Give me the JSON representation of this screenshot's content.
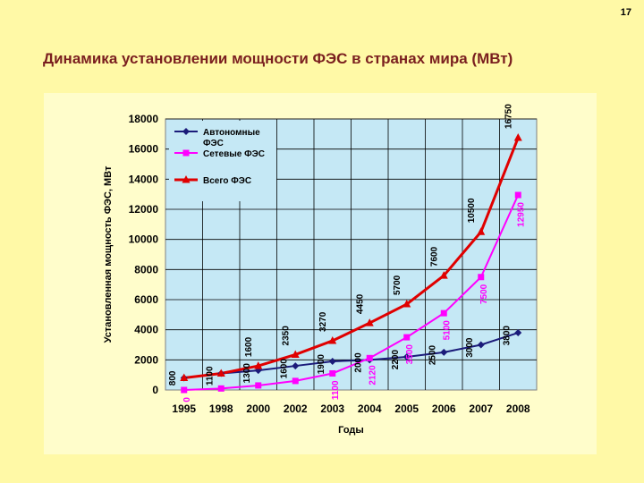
{
  "slide": {
    "number": "17",
    "title": "Динамика установлении мощности ФЭС в странах мира (МВт)"
  },
  "colors": {
    "background": "#FFF9A6",
    "panel": "#FFFDCB",
    "plot_area": "#C5E8F5",
    "title": "#7A1F1F",
    "series_autonomous": "#1B1B7A",
    "series_grid": "#FF00FF",
    "series_total": "#E00000"
  },
  "chart_data": {
    "type": "line",
    "title": "",
    "xlabel": "Годы",
    "ylabel": "Установленная мощность ФЭС, МВт",
    "categories": [
      "1995",
      "1998",
      "2000",
      "2002",
      "2003",
      "2004",
      "2005",
      "2006",
      "2007",
      "2008"
    ],
    "ylim": [
      0,
      18000
    ],
    "yticks": [
      0,
      2000,
      4000,
      6000,
      8000,
      10000,
      12000,
      14000,
      16000,
      18000
    ],
    "grid": true,
    "legend_position": "top-left",
    "series": [
      {
        "name": "Автономные ФЭС",
        "color": "#1B1B7A",
        "marker": "diamond",
        "values": [
          800,
          1100,
          1300,
          1600,
          1900,
          2000,
          2200,
          2500,
          3000,
          3800
        ],
        "labels": [
          "800",
          "1100",
          "1300",
          "1600",
          "1900",
          "2000",
          "2200",
          "2500",
          "3000",
          "3800"
        ]
      },
      {
        "name": "Сетевые ФЭС",
        "color": "#FF00FF",
        "marker": "square",
        "values": [
          0,
          100,
          300,
          600,
          1100,
          2120,
          3500,
          5100,
          7500,
          12950
        ],
        "labels": [
          "0",
          "",
          "",
          "",
          "1100",
          "2120",
          "3500",
          "5100",
          "7500",
          "12950"
        ]
      },
      {
        "name": "Всего ФЭС",
        "color": "#E00000",
        "marker": "triangle",
        "values": [
          800,
          1100,
          1600,
          2350,
          3270,
          4450,
          5700,
          7600,
          10500,
          16750
        ],
        "labels": [
          "",
          "",
          "1600",
          "2350",
          "3270",
          "4450",
          "5700",
          "7600",
          "10500",
          "16750"
        ]
      }
    ]
  }
}
